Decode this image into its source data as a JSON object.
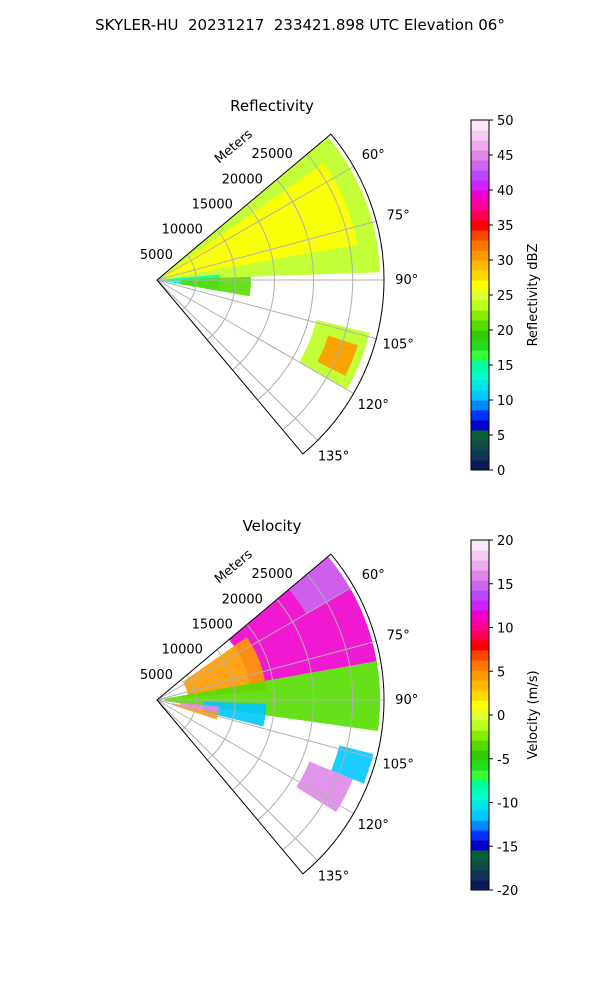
{
  "suptitle": "SKYLER-HU  20231217  233421.898 UTC Elevation 06°",
  "chart_data": [
    {
      "type": "heatmap",
      "subtype": "radar-sector-ppi",
      "title": "Reflectivity",
      "range_label": "Meters",
      "range_ticks": [
        5000,
        10000,
        15000,
        20000,
        25000
      ],
      "range_max": 29000,
      "azimuth_range": [
        50,
        140
      ],
      "azimuth_ticks": [
        "60°",
        "75°",
        "90°",
        "105°",
        "120°",
        "135°"
      ],
      "azimuth_tick_values": [
        60,
        75,
        90,
        105,
        120,
        135
      ],
      "colorbar": {
        "label": "Reflectivity dBZ",
        "min": 0,
        "max": 50,
        "ticks": [
          "0",
          "5",
          "10",
          "15",
          "20",
          "25",
          "30",
          "35",
          "40",
          "45",
          "50"
        ],
        "tick_values": [
          0,
          5,
          10,
          15,
          20,
          25,
          30,
          35,
          40,
          45,
          50
        ],
        "colors": [
          "#0b1b57",
          "#12335a",
          "#0f4c45",
          "#0b5f3d",
          "#0000cc",
          "#0033ff",
          "#0088ff",
          "#00c8ff",
          "#00e6e6",
          "#00ffc8",
          "#00ffa0",
          "#33ff33",
          "#22dd22",
          "#33cc00",
          "#55dd00",
          "#88ee00",
          "#bbff22",
          "#ddff33",
          "#ffff00",
          "#ffd800",
          "#ffb800",
          "#ff9900",
          "#ff7700",
          "#ff4400",
          "#ff0000",
          "#ff0055",
          "#ff0099",
          "#ee00cc",
          "#cc22ff",
          "#bb44ff",
          "#cc66ee",
          "#dd88e8",
          "#eeaaee",
          "#f6ccf2",
          "#fde8fb"
        ]
      },
      "regions": [
        {
          "name": "main-echo",
          "az": [
            50,
            88
          ],
          "r": [
            0,
            28500
          ],
          "value": 23
        },
        {
          "name": "near-band",
          "az": [
            55,
            80
          ],
          "r": [
            1000,
            26000
          ],
          "value": 27
        },
        {
          "name": "near-edge",
          "az": [
            85,
            100
          ],
          "r": [
            0,
            8000
          ],
          "value": 13
        },
        {
          "name": "mid-cells",
          "az": [
            88,
            100
          ],
          "r": [
            3000,
            12000
          ],
          "value": 20
        },
        {
          "name": "southeast-cell",
          "az": [
            104,
            120
          ],
          "r": [
            21000,
            28000
          ],
          "value": 24
        },
        {
          "name": "southeast-core",
          "az": [
            108,
            117
          ],
          "r": [
            23000,
            27000
          ],
          "value": 30
        }
      ]
    },
    {
      "type": "heatmap",
      "subtype": "radar-sector-ppi",
      "title": "Velocity",
      "range_label": "Meters",
      "range_ticks": [
        5000,
        10000,
        15000,
        20000,
        25000
      ],
      "range_max": 29000,
      "azimuth_range": [
        50,
        140
      ],
      "azimuth_ticks": [
        "60°",
        "75°",
        "90°",
        "105°",
        "120°",
        "135°"
      ],
      "azimuth_tick_values": [
        60,
        75,
        90,
        105,
        120,
        135
      ],
      "colorbar": {
        "label": "Velocity (m/s)",
        "min": -20,
        "max": 20,
        "ticks": [
          "-20",
          "-15",
          "-10",
          "-5",
          "0",
          "5",
          "10",
          "15",
          "20"
        ],
        "tick_values": [
          -20,
          -15,
          -10,
          -5,
          0,
          5,
          10,
          15,
          20
        ],
        "colors": [
          "#0b1b57",
          "#12335a",
          "#0f4c45",
          "#0b5f3d",
          "#0000cc",
          "#0033ff",
          "#0088ff",
          "#00c8ff",
          "#00e6e6",
          "#00ffc8",
          "#00ffa0",
          "#33ff33",
          "#22dd22",
          "#33cc00",
          "#55dd00",
          "#88ee00",
          "#bbff22",
          "#ddff33",
          "#ffff00",
          "#ffd800",
          "#ffb800",
          "#ff9900",
          "#ff7700",
          "#ff4400",
          "#ff0000",
          "#ff0055",
          "#ff0099",
          "#ee00cc",
          "#cc22ff",
          "#bb44ff",
          "#cc66ee",
          "#dd88e8",
          "#eeaaee",
          "#f6ccf2",
          "#fde8fb"
        ]
      },
      "regions": [
        {
          "name": "outer-red",
          "az": [
            50,
            80
          ],
          "r": [
            12000,
            28500
          ],
          "value": 11
        },
        {
          "name": "far-purple",
          "az": [
            50,
            60
          ],
          "r": [
            22000,
            28500
          ],
          "value": 15
        },
        {
          "name": "mid-orange",
          "az": [
            55,
            85
          ],
          "r": [
            4000,
            14000
          ],
          "value": 5
        },
        {
          "name": "green-band",
          "az": [
            80,
            98
          ],
          "r": [
            1000,
            28500
          ],
          "value": -3
        },
        {
          "name": "near-cyan",
          "az": [
            92,
            104
          ],
          "r": [
            6000,
            14000
          ],
          "value": -11
        },
        {
          "name": "near-purple",
          "az": [
            96,
            102
          ],
          "r": [
            3000,
            8000
          ],
          "value": 16
        },
        {
          "name": "near-orange",
          "az": [
            102,
            108
          ],
          "r": [
            2000,
            8000
          ],
          "value": 5
        },
        {
          "name": "southeast-cyan",
          "az": [
            104,
            112
          ],
          "r": [
            24000,
            28500
          ],
          "value": -11
        },
        {
          "name": "southeast-purple",
          "az": [
            112,
            122
          ],
          "r": [
            21000,
            27000
          ],
          "value": 16
        }
      ]
    }
  ]
}
